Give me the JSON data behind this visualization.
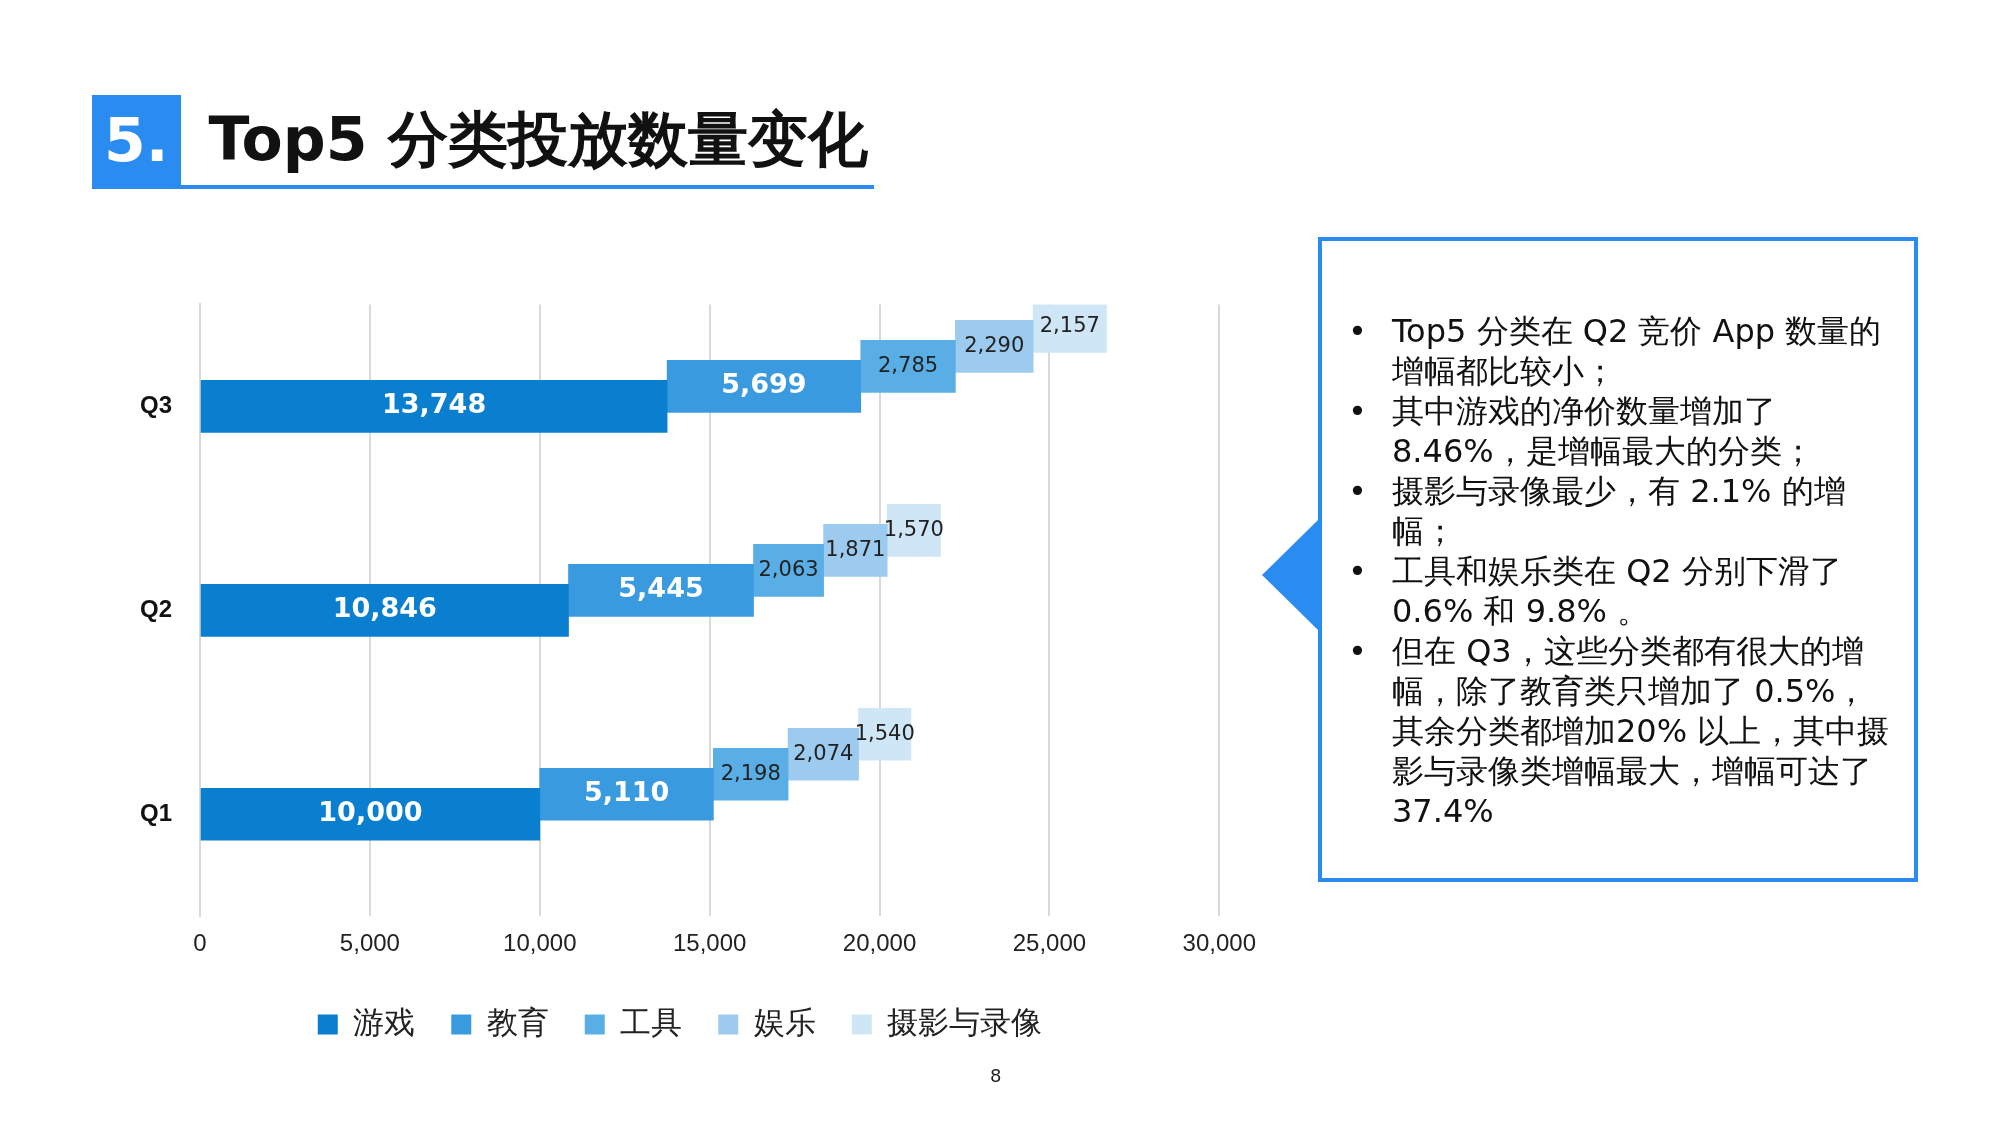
{
  "chart_data": {
    "type": "bar",
    "orientation": "horizontal",
    "stacked": true,
    "title": "5. Top5 分类投放数量变化",
    "categories": [
      "Q3",
      "Q2",
      "Q1"
    ],
    "series": [
      {
        "name": "游戏",
        "color": "#0a7fd0",
        "values": [
          13748,
          10846,
          10000
        ],
        "value_labels": [
          "13,748",
          "10,846",
          "10,000"
        ]
      },
      {
        "name": "教育",
        "color": "#3a9ae0",
        "values": [
          5699,
          5445,
          5110
        ],
        "value_labels": [
          "5,699",
          "5,445",
          "5,110"
        ]
      },
      {
        "name": "工具",
        "color": "#5aaee6",
        "values": [
          2785,
          2063,
          2198
        ],
        "value_labels": [
          "2,785",
          "2,063",
          "2,198"
        ]
      },
      {
        "name": "娱乐",
        "color": "#9dcbef",
        "values": [
          2290,
          1871,
          2074
        ],
        "value_labels": [
          "2,290",
          "1,871",
          "2,074"
        ]
      },
      {
        "name": "摄影与录像",
        "color": "#cfe6f7",
        "values": [
          2157,
          1570,
          1540
        ],
        "value_labels": [
          "2,157",
          "1,570",
          "1,540"
        ]
      }
    ],
    "xlim": [
      0,
      30000
    ],
    "xticks": [
      0,
      {
        "value": 5000,
        "label": "5,000"
      },
      {
        "value": 10000,
        "label": "10,000"
      },
      {
        "value": 15000,
        "label": "15,000"
      },
      {
        "value": 20000,
        "label": "20,000"
      },
      {
        "value": 25000,
        "label": "25,000"
      },
      {
        "value": 30000,
        "label": "30,000"
      }
    ],
    "grid": "x",
    "legend": "bottom",
    "annotations": [
      "• Top5 分类在 Q2 竞价 App 数量的增幅都比较小；",
      "• 其中游戏的净价数量增加了 8.46%，是增幅最大的分类；",
      "• 摄影与录像最少，有 2.1% 的增幅；",
      "• 工具和娱乐类在 Q2 分别下滑了 0.6% 和 9.8% 。",
      "• 但在 Q3，这些分类都有很大的增幅，除了教育类只增加了 0.5%，其余分类都增加20% 以上，其中摄影与录像类增幅最大，增幅可达了 37.4%",
      "8"
    ]
  }
}
